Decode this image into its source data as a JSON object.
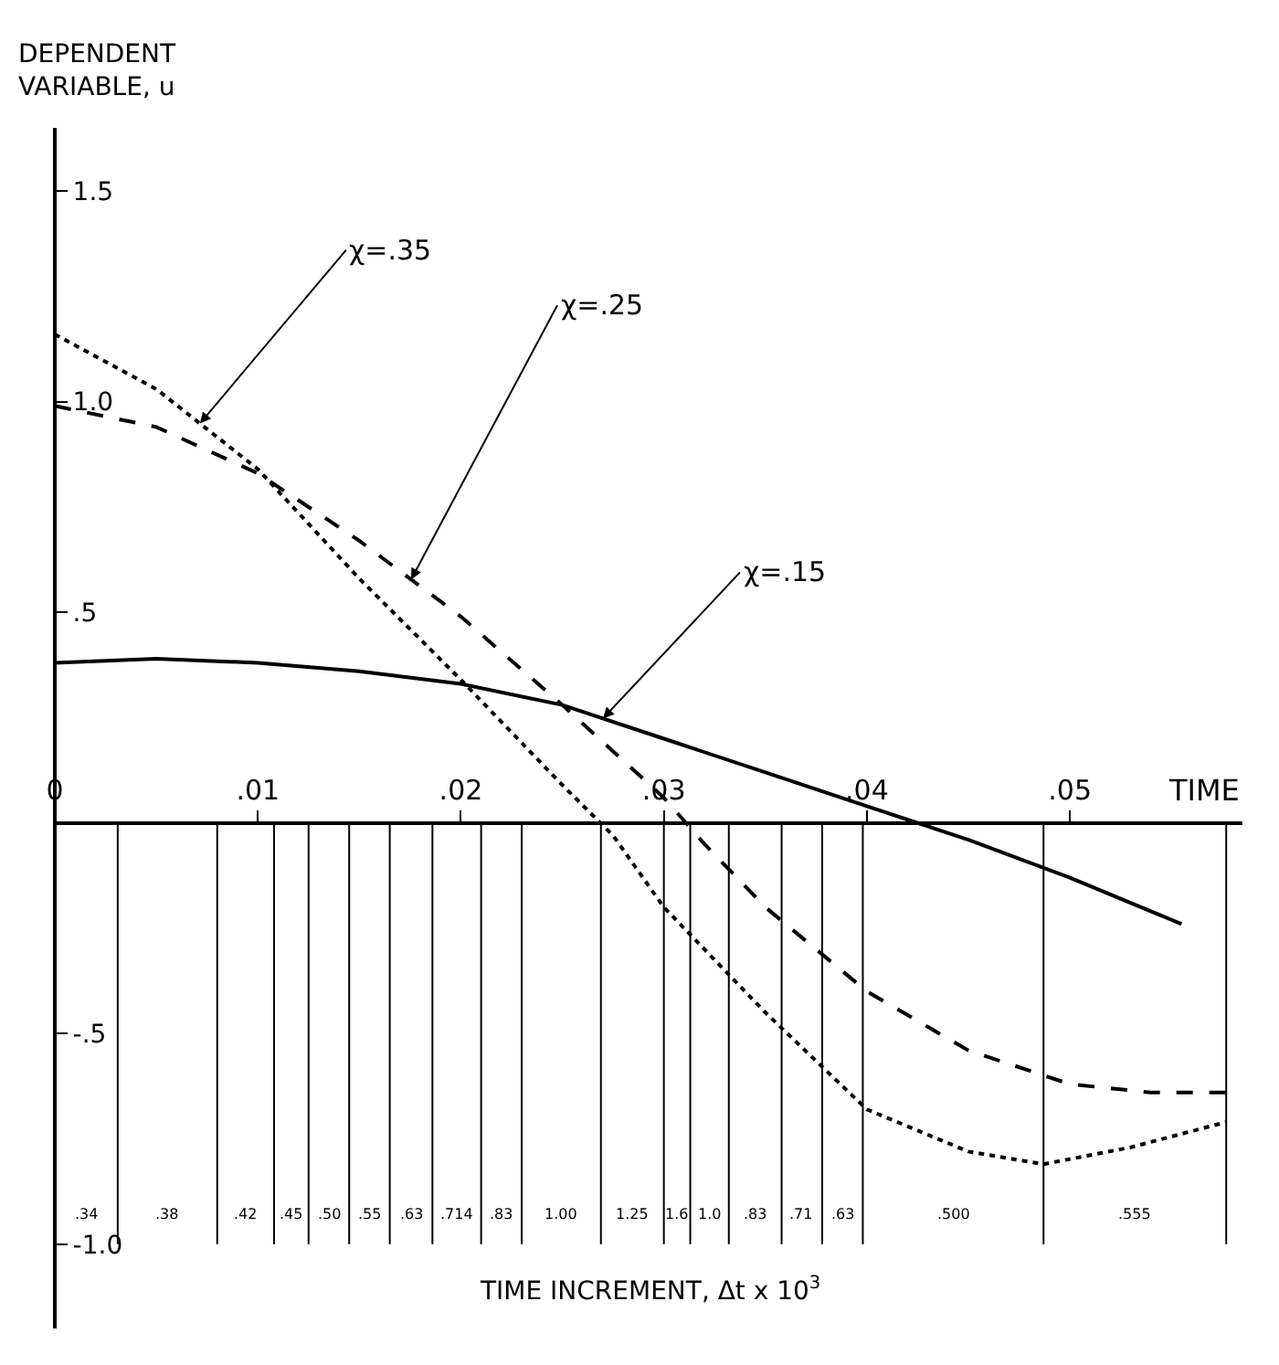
{
  "chart_data": {
    "type": "line",
    "xlabel": "TIME",
    "ylabel": "DEPENDENT VARIABLE, u",
    "xlim": [
      0,
      0.0585
    ],
    "ylim": [
      -1.2,
      1.65
    ],
    "xticks": [
      {
        "value": 0,
        "label": "0"
      },
      {
        "value": 0.01,
        "label": ".01"
      },
      {
        "value": 0.02,
        "label": ".02"
      },
      {
        "value": 0.03,
        "label": ".03"
      },
      {
        "value": 0.04,
        "label": ".04"
      },
      {
        "value": 0.05,
        "label": ".05"
      }
    ],
    "yticks": [
      {
        "value": 1.5,
        "label": "1.5"
      },
      {
        "value": 1.0,
        "label": "1.0"
      },
      {
        "value": 0.5,
        "label": ".5"
      },
      {
        "value": -0.5,
        "label": "-.5"
      },
      {
        "value": -1.0,
        "label": "-1.0"
      }
    ],
    "grid": false,
    "legend": false,
    "marker": "none",
    "series": [
      {
        "name": "χ=.35",
        "color": "#000000",
        "line_style": "dotted",
        "x": [
          0,
          0.005,
          0.01,
          0.015,
          0.02,
          0.025,
          0.0275,
          0.03,
          0.035,
          0.04,
          0.045,
          0.0487,
          0.053,
          0.0577
        ],
        "values": [
          1.16,
          1.03,
          0.84,
          0.58,
          0.34,
          0.09,
          -0.03,
          -0.2,
          -0.45,
          -0.68,
          -0.78,
          -0.81,
          -0.77,
          -0.71
        ]
      },
      {
        "name": "χ=.25",
        "color": "#000000",
        "line_style": "dashed",
        "x": [
          0,
          0.005,
          0.01,
          0.015,
          0.02,
          0.025,
          0.03,
          0.032,
          0.035,
          0.04,
          0.045,
          0.05,
          0.054,
          0.0577
        ],
        "values": [
          0.99,
          0.94,
          0.83,
          0.67,
          0.49,
          0.28,
          0.06,
          -0.05,
          -0.2,
          -0.4,
          -0.54,
          -0.62,
          -0.64,
          -0.64
        ]
      },
      {
        "name": "χ=.15",
        "color": "#000000",
        "line_style": "solid",
        "x": [
          0,
          0.005,
          0.01,
          0.015,
          0.02,
          0.025,
          0.03,
          0.035,
          0.04,
          0.0425,
          0.045,
          0.05,
          0.0555
        ],
        "values": [
          0.38,
          0.39,
          0.38,
          0.36,
          0.33,
          0.28,
          0.2,
          0.12,
          0.04,
          0.0,
          -0.04,
          -0.13,
          -0.24
        ]
      }
    ],
    "ref_lines": [
      {
        "axis": "x",
        "value": 0.0031
      },
      {
        "axis": "x",
        "value": 0.008
      },
      {
        "axis": "x",
        "value": 0.0108
      },
      {
        "axis": "x",
        "value": 0.0125
      },
      {
        "axis": "x",
        "value": 0.0145
      },
      {
        "axis": "x",
        "value": 0.0165
      },
      {
        "axis": "x",
        "value": 0.0186
      },
      {
        "axis": "x",
        "value": 0.021
      },
      {
        "axis": "x",
        "value": 0.023
      },
      {
        "axis": "x",
        "value": 0.0269
      },
      {
        "axis": "x",
        "value": 0.03
      },
      {
        "axis": "x",
        "value": 0.0313
      },
      {
        "axis": "x",
        "value": 0.0332
      },
      {
        "axis": "x",
        "value": 0.0358
      },
      {
        "axis": "x",
        "value": 0.0378
      },
      {
        "axis": "x",
        "value": 0.0398
      },
      {
        "axis": "x",
        "value": 0.0487
      },
      {
        "axis": "x",
        "value": 0.0577
      }
    ],
    "annotations": [
      ".34",
      ".38",
      ".42",
      ".45",
      ".50",
      ".55",
      ".63",
      ".714",
      ".83",
      "1.00",
      "1.25",
      "1.6",
      "1.0",
      ".83",
      ".71",
      ".63",
      ".500",
      ".555",
      "TIME INCREMENT, Δt x 10$^{3}$"
    ]
  }
}
